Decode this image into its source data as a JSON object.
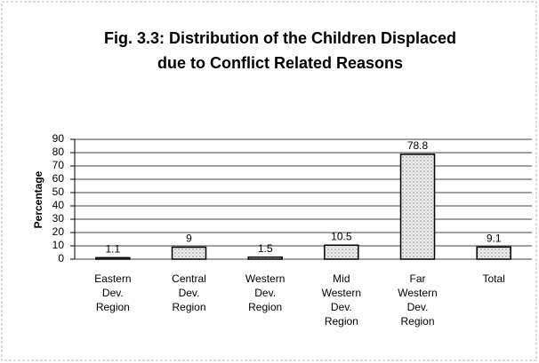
{
  "chart_data": {
    "type": "bar",
    "title": [
      "Fig. 3.3: Distribution of the Children Displaced",
      "due to Conflict Related Reasons"
    ],
    "y_label": "Percentage",
    "categories": [
      "Eastern Dev. Region",
      "Central Dev. Region",
      "Western Dev. Region",
      "Mid Western Dev. Region",
      "Far Western Dev. Region",
      "Total"
    ],
    "values": [
      1.1,
      9,
      1.5,
      10.5,
      78.8,
      9.1
    ],
    "color": "#d9d9d9",
    "ylim": [
      0,
      90
    ],
    "yticks": [
      0,
      10,
      20,
      30,
      40,
      50,
      60,
      70,
      80,
      90
    ],
    "grid": true
  }
}
